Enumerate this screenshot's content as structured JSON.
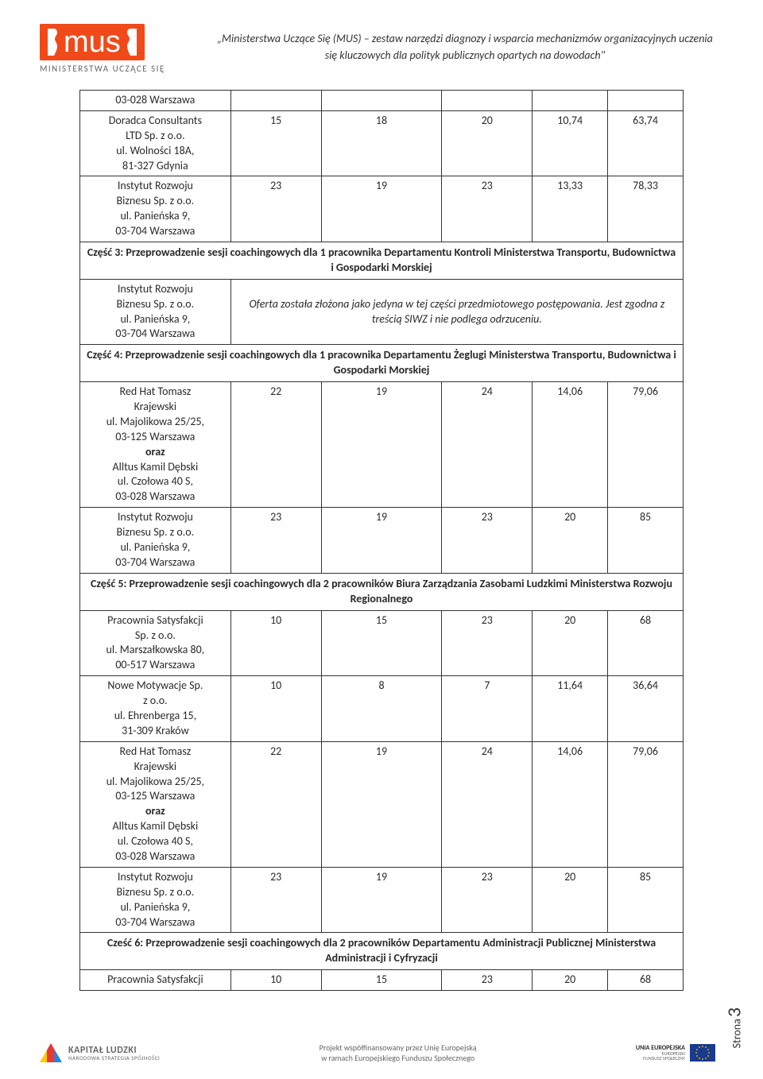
{
  "header": {
    "logo_text": "mus",
    "logo_subtext": "MINISTERSTWA UCZĄCE SIĘ",
    "caption": "„Ministerstwa Uczące Się (MUS) – zestaw narzędzi diagnozy i wsparcia mechanizmów organizacyjnych uczenia się kluczowych dla polityk publicznych opartych na dowodach\""
  },
  "rows": [
    {
      "kind": "data",
      "name_lines": [
        "03-028 Warszawa"
      ],
      "c1": "",
      "c2": "",
      "c3": "",
      "c4": "",
      "c5": ""
    },
    {
      "kind": "data",
      "name_lines": [
        "Doradca Consultants",
        "LTD Sp. z o.o.",
        "ul. Wolności 18A,",
        "81-327 Gdynia"
      ],
      "c1": "15",
      "c2": "18",
      "c3": "20",
      "c4": "10,74",
      "c5": "63,74"
    },
    {
      "kind": "data",
      "name_lines": [
        "Instytut Rozwoju",
        "Biznesu Sp. z o.o.",
        "ul. Panieńska 9,",
        "03-704 Warszawa"
      ],
      "c1": "23",
      "c2": "19",
      "c3": "23",
      "c4": "13,33",
      "c5": "78,33"
    },
    {
      "kind": "section",
      "text": "Część 3: Przeprowadzenie sesji coachingowych dla 1 pracownika  Departamentu Kontroli Ministerstwa Transportu, Budownictwa i Gospodarki Morskiej"
    },
    {
      "kind": "offer",
      "name_lines": [
        "Instytut Rozwoju",
        "Biznesu Sp. z o.o.",
        "ul. Panieńska 9,",
        "03-704 Warszawa"
      ],
      "note": "Oferta została złożona jako jedyna w tej części przedmiotowego postępowania. Jest zgodna z treścią SIWZ i nie podlega odrzuceniu."
    },
    {
      "kind": "section",
      "text": "Część 4: Przeprowadzenie sesji coachingowych dla 1 pracownika Departamentu Żeglugi Ministerstwa Transportu, Budownictwa i Gospodarki Morskiej"
    },
    {
      "kind": "data",
      "name_lines": [
        "Red Hat Tomasz",
        "Krajewski",
        "ul. Majolikowa 25/25,",
        "03-125 Warszawa",
        "<b>oraz</b>",
        "Alltus Kamil Dębski",
        "ul. Czołowa 40 S,",
        "03-028 Warszawa"
      ],
      "c1": "22",
      "c2": "19",
      "c3": "24",
      "c4": "14,06",
      "c5": "79,06"
    },
    {
      "kind": "data",
      "name_lines": [
        "Instytut Rozwoju",
        "Biznesu Sp. z o.o.",
        "ul. Panieńska 9,",
        "03-704 Warszawa"
      ],
      "c1": "23",
      "c2": "19",
      "c3": "23",
      "c4": "20",
      "c5": "85"
    },
    {
      "kind": "section",
      "text": "Część 5: Przeprowadzenie sesji coachingowych dla 2 pracowników Biura Zarządzania Zasobami Ludzkimi Ministerstwa Rozwoju Regionalnego"
    },
    {
      "kind": "data",
      "name_lines": [
        "Pracownia Satysfakcji",
        "Sp. z o.o.",
        "ul. Marszałkowska 80,",
        "00-517 Warszawa"
      ],
      "c1": "10",
      "c2": "15",
      "c3": "23",
      "c4": "20",
      "c5": "68"
    },
    {
      "kind": "data",
      "name_lines": [
        "Nowe Motywacje Sp.",
        "z o.o.",
        "ul. Ehrenberga 15,",
        "31-309 Kraków"
      ],
      "c1": "10",
      "c2": "8",
      "c3": "7",
      "c4": "11,64",
      "c5": "36,64"
    },
    {
      "kind": "data",
      "name_lines": [
        "Red Hat Tomasz",
        "Krajewski",
        "ul. Majolikowa 25/25,",
        "03-125 Warszawa",
        "<b>oraz</b>",
        "Alltus Kamil Dębski",
        "ul. Czołowa 40 S,",
        "03-028 Warszawa"
      ],
      "c1": "22",
      "c2": "19",
      "c3": "24",
      "c4": "14,06",
      "c5": "79,06"
    },
    {
      "kind": "data",
      "name_lines": [
        "Instytut Rozwoju",
        "Biznesu Sp. z o.o.",
        "ul. Panieńska 9,",
        "03-704 Warszawa"
      ],
      "c1": "23",
      "c2": "19",
      "c3": "23",
      "c4": "20",
      "c5": "85"
    },
    {
      "kind": "section",
      "text": "Cześć 6: Przeprowadzenie sesji coachingowych dla 2 pracowników Departamentu Administracji Publicznej Ministerstwa Administracji i Cyfryzacji"
    },
    {
      "kind": "data",
      "name_lines": [
        "Pracownia Satysfakcji"
      ],
      "c1": "10",
      "c2": "15",
      "c3": "23",
      "c4": "20",
      "c5": "68"
    }
  ],
  "footer": {
    "left_title": "KAPITAŁ LUDZKI",
    "left_sub": "NARODOWA STRATEGIA SPÓJNOŚCI",
    "center_line1": "Projekt współfinansowany przez Unię Europejską",
    "center_line2": "w ramach Europejskiego Funduszu Społecznego",
    "right_title": "UNIA EUROPEJSKA",
    "right_sub1": "EUROPEJSKI",
    "right_sub2": "FUNDUSZ SPOŁECZNY"
  },
  "page_side": {
    "label": "Strona",
    "number": "3"
  }
}
